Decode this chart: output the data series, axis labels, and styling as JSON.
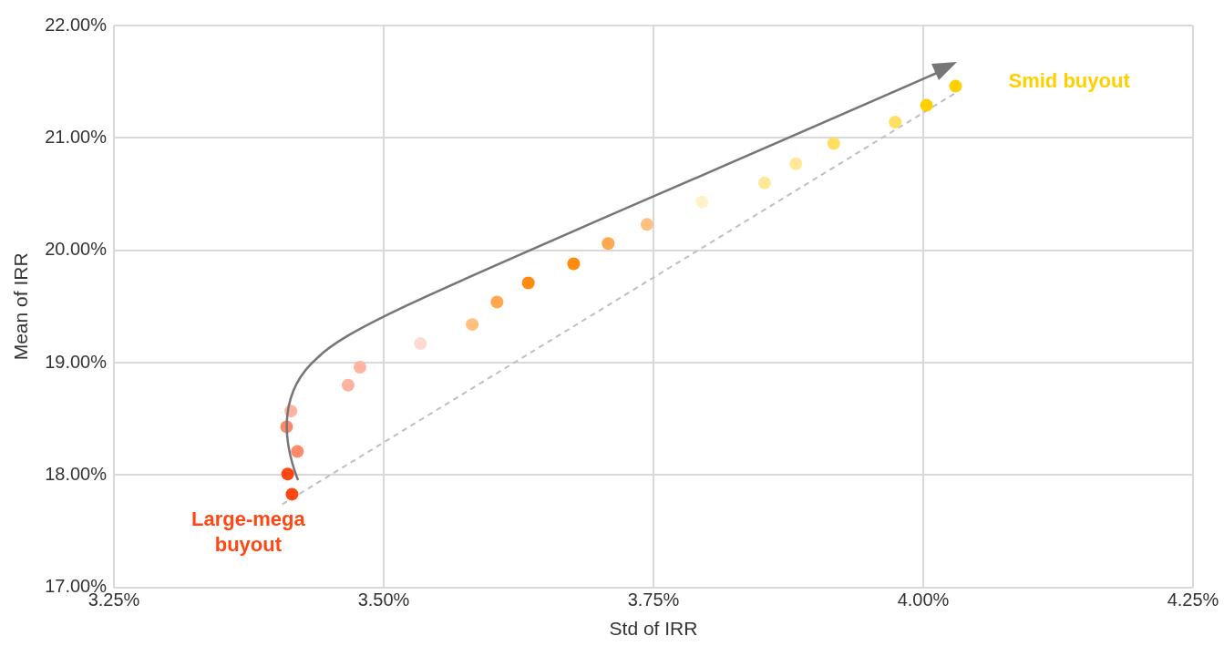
{
  "chart_data": {
    "type": "scatter",
    "xlabel": "Std of IRR",
    "ylabel": "Mean of IRR",
    "xlim": [
      3.25,
      4.25
    ],
    "xticks": [
      {
        "value": 3.25,
        "label": "3.25%"
      },
      {
        "value": 3.5,
        "label": "3.50%"
      },
      {
        "value": 3.75,
        "label": "3.75%"
      },
      {
        "value": 4,
        "label": "4.00%"
      },
      {
        "value": 4.25,
        "label": "4.25%"
      }
    ],
    "ylim": [
      17,
      22
    ],
    "yticks": [
      {
        "value": 17,
        "label": "17.00%"
      },
      {
        "value": 18,
        "label": "18.00%"
      },
      {
        "value": 19,
        "label": "19.00%"
      },
      {
        "value": 20,
        "label": "20.00%"
      },
      {
        "value": 21,
        "label": "21.00%"
      },
      {
        "value": 22,
        "label": "22.00%"
      }
    ],
    "grid": true,
    "legend": false,
    "marker": "circle",
    "series": [
      {
        "x": [
          3.415,
          3.411,
          3.42,
          3.41,
          3.414,
          3.467,
          3.478,
          3.534,
          3.582,
          3.605,
          3.634,
          3.676,
          3.708,
          3.744,
          3.795,
          3.853,
          3.882,
          3.917,
          3.974,
          4.003,
          4.03
        ],
        "values": [
          17.83,
          18.01,
          18.21,
          18.43,
          18.57,
          18.8,
          18.96,
          19.17,
          19.34,
          19.54,
          19.71,
          19.88,
          20.06,
          20.23,
          20.43,
          20.6,
          20.77,
          20.95,
          21.14,
          21.29,
          21.46
        ],
        "colors": [
          "#ff4713",
          "#ff4713",
          "#ff8a6a",
          "#ff8a6a",
          "#ffb3a0",
          "#ffb3a0",
          "#ffb3a0",
          "#ffdad2",
          "#ffc080",
          "#ffa850",
          "#ff8a10",
          "#ff8a10",
          "#ffa850",
          "#ffc080",
          "#fff2c8",
          "#ffe898",
          "#ffe898",
          "#ffe060",
          "#ffe060",
          "#ffd000",
          "#ffd000"
        ]
      },
      {
        "type": "line",
        "x": [
          3.406,
          4.03
        ],
        "values": [
          17.74,
          21.4
        ],
        "color": "#bfbfbf",
        "line_style": "dashed",
        "marker": "none"
      }
    ],
    "annotations": [
      "Large-mega buyout",
      "Smid buyout"
    ]
  }
}
